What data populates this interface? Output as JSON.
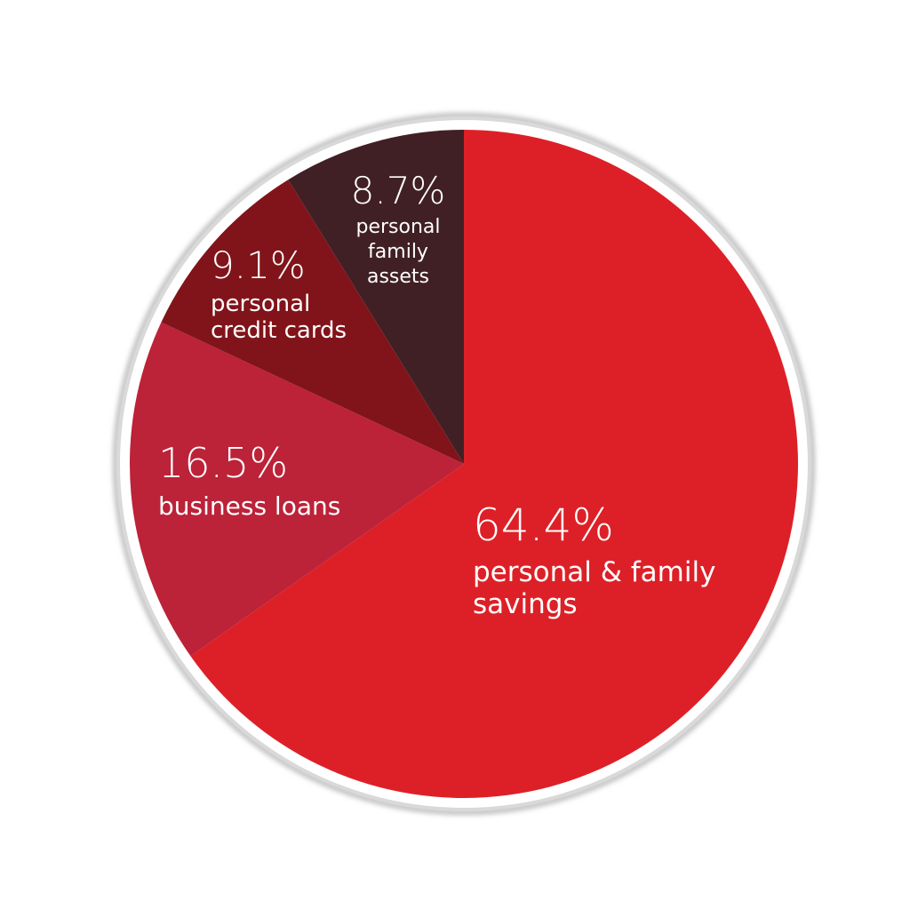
{
  "chart_data": {
    "type": "pie",
    "start": "12 o'clock",
    "direction": "clockwise",
    "legend": "none",
    "slices": [
      {
        "value": 64.4,
        "pct_label": "64.4%",
        "label_lines": [
          "personal & family",
          "savings"
        ],
        "color": "#dd2027"
      },
      {
        "value": 16.5,
        "pct_label": "16.5%",
        "label_lines": [
          "business loans"
        ],
        "color": "#bc2238"
      },
      {
        "value": 9.1,
        "pct_label": "9.1%",
        "label_lines": [
          "personal",
          "credit cards"
        ],
        "color": "#81141a"
      },
      {
        "value": 8.7,
        "pct_label": "8.7%",
        "label_lines": [
          "personal",
          "family",
          "assets"
        ],
        "color": "#412025"
      }
    ]
  },
  "colors": {
    "ring": "#d9d9d9",
    "text": "#ffffff"
  }
}
